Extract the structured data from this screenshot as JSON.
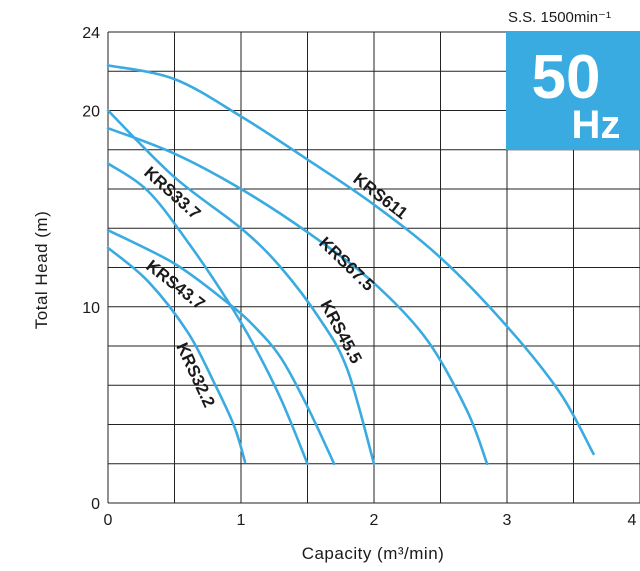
{
  "speed_label": "S.S. 1500min⁻¹",
  "badge": {
    "value": "50",
    "unit": "Hz",
    "bg_color": "#3aabe0"
  },
  "curve_color": "#3aabe0",
  "chart_data": {
    "type": "line",
    "title": "",
    "xlabel": "Capacity (m³/min)",
    "ylabel": "Total Head (m)",
    "xlim": [
      0,
      4
    ],
    "ylim": [
      0,
      24
    ],
    "xticks": [
      "0",
      "1",
      "2",
      "3",
      "4"
    ],
    "yticks": [
      {
        "value": 0,
        "label": "0"
      },
      {
        "value": 10,
        "label": "10"
      },
      {
        "value": 20,
        "label": "20"
      },
      {
        "value": 24,
        "label": "24"
      }
    ],
    "grid": true,
    "series": [
      {
        "name": "KRS611",
        "points": [
          [
            0,
            22.3
          ],
          [
            0.5,
            21.6
          ],
          [
            1.0,
            19.7
          ],
          [
            1.5,
            17.5
          ],
          [
            2.0,
            15.2
          ],
          [
            2.5,
            12.5
          ],
          [
            3.0,
            9.0
          ],
          [
            3.4,
            5.6
          ],
          [
            3.65,
            2.5
          ]
        ]
      },
      {
        "name": "KRS67.5",
        "points": [
          [
            0,
            19.1
          ],
          [
            0.5,
            17.8
          ],
          [
            1.0,
            16.0
          ],
          [
            1.5,
            13.8
          ],
          [
            2.0,
            11.2
          ],
          [
            2.4,
            8.3
          ],
          [
            2.7,
            4.7
          ],
          [
            2.85,
            2.0
          ]
        ]
      },
      {
        "name": "KRS45.5",
        "points": [
          [
            0,
            20.0
          ],
          [
            0.5,
            16.6
          ],
          [
            1.0,
            14.0
          ],
          [
            1.3,
            12.0
          ],
          [
            1.6,
            9.3
          ],
          [
            1.8,
            6.8
          ],
          [
            2.0,
            2.0
          ]
        ]
      },
      {
        "name": "KRS33.7",
        "points": [
          [
            0,
            17.3
          ],
          [
            0.3,
            15.9
          ],
          [
            0.6,
            13.3
          ],
          [
            0.9,
            10.3
          ],
          [
            1.1,
            8.0
          ],
          [
            1.3,
            5.3
          ],
          [
            1.5,
            2.0
          ]
        ]
      },
      {
        "name": "KRS43.7",
        "points": [
          [
            0,
            13.9
          ],
          [
            0.5,
            12.2
          ],
          [
            0.9,
            10.2
          ],
          [
            1.1,
            9.0
          ],
          [
            1.3,
            7.4
          ],
          [
            1.5,
            4.9
          ],
          [
            1.7,
            2.0
          ]
        ]
      },
      {
        "name": "KRS32.2",
        "points": [
          [
            0,
            13.0
          ],
          [
            0.3,
            11.3
          ],
          [
            0.6,
            8.7
          ],
          [
            0.8,
            6.1
          ],
          [
            0.95,
            3.9
          ],
          [
            1.03,
            2.1
          ]
        ]
      }
    ],
    "labels": [
      "KRS611",
      "KRS67.5",
      "KRS45.5",
      "KRS33.7",
      "KRS43.7",
      "KRS32.2"
    ]
  }
}
